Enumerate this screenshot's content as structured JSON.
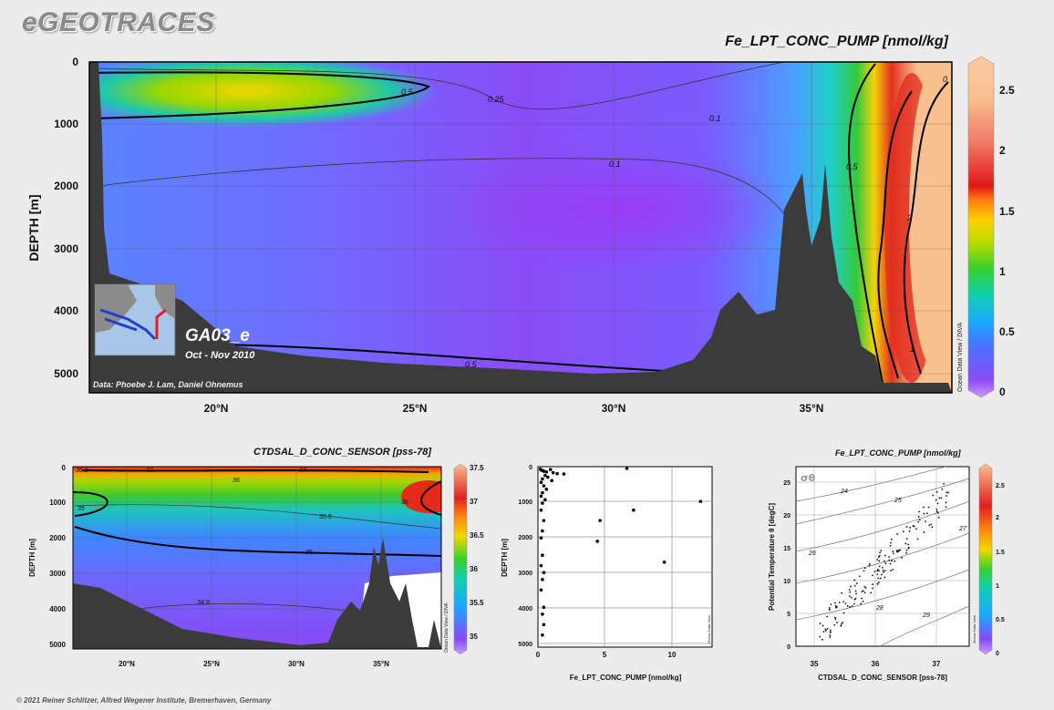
{
  "header": {
    "logo": "eGEOTRACES",
    "copyright": "© 2021 Reiner Schlitzer, Alfred Wegener Institute, Bremerhaven, Germany"
  },
  "colors": {
    "background": "#ececec",
    "topography": "#3b3b3b",
    "low": "#8b3cf5",
    "high": "#f9c08f"
  },
  "chart_data": [
    {
      "type": "heatmap",
      "title": "Fe_LPT_CONC_PUMP [nmol/kg]",
      "ylabel": "DEPTH [m]",
      "x_ticks": [
        "20°N",
        "25°N",
        "30°N",
        "35°N"
      ],
      "y_ticks": [
        "0",
        "1000",
        "2000",
        "3000",
        "4000",
        "5000"
      ],
      "colorbar_ticks": [
        "2.5",
        "2",
        "1.5",
        "1",
        "0.5",
        "0"
      ],
      "colorbar_side_label": "Ocean Data View / DIVA",
      "contour_labels": [
        "0.5",
        "0.25",
        "0.1",
        "0.1",
        "0.5",
        "2",
        "1",
        "0.5",
        "0"
      ],
      "section_name": "GA03_e",
      "section_dates": "Oct - Nov 2010",
      "credit": "Data: Phoebe J. Lam, Daniel Ohnemus"
    },
    {
      "type": "heatmap",
      "title": "CTDSAL_D_CONC_SENSOR [pss-78]",
      "ylabel": "DEPTH [m]",
      "x_ticks": [
        "20°N",
        "25°N",
        "30°N",
        "35°N"
      ],
      "y_ticks": [
        "0",
        "1000",
        "2000",
        "3000",
        "4000",
        "5000"
      ],
      "colorbar_ticks": [
        "37.5",
        "37",
        "36.5",
        "36",
        "35.5",
        "35"
      ],
      "colorbar_side_label": "Ocean Data View / DIVA",
      "contour_labels": [
        "36.5",
        "37",
        "37",
        "36",
        "35",
        "35.5",
        "36",
        "35",
        "34.9"
      ]
    },
    {
      "type": "scatter",
      "xlabel": "Fe_LPT_CONC_PUMP [nmol/kg]",
      "ylabel": "DEPTH [m]",
      "x_ticks": [
        "0",
        "5",
        "10"
      ],
      "y_ticks": [
        "0",
        "1000",
        "2000",
        "3000",
        "4000",
        "5000"
      ],
      "xlim": [
        0,
        13
      ],
      "ylim": [
        5200,
        0
      ],
      "side_label": "Ocean Data View",
      "points": [
        [
          0.05,
          20
        ],
        [
          0.1,
          40
        ],
        [
          0.2,
          60
        ],
        [
          0.3,
          80
        ],
        [
          0.5,
          100
        ],
        [
          0.8,
          30
        ],
        [
          1.0,
          120
        ],
        [
          1.3,
          150
        ],
        [
          1.8,
          160
        ],
        [
          0.4,
          200
        ],
        [
          0.6,
          250
        ],
        [
          0.2,
          300
        ],
        [
          0.9,
          350
        ],
        [
          0.1,
          400
        ],
        [
          0.3,
          500
        ],
        [
          0.5,
          600
        ],
        [
          0.2,
          700
        ],
        [
          0.1,
          800
        ],
        [
          0.4,
          900
        ],
        [
          0.2,
          1000
        ],
        [
          0.1,
          1200
        ],
        [
          0.3,
          1500
        ],
        [
          0.2,
          1800
        ],
        [
          0.1,
          2000
        ],
        [
          0.2,
          2500
        ],
        [
          0.1,
          2800
        ],
        [
          0.3,
          3000
        ],
        [
          0.2,
          3200
        ],
        [
          0.1,
          3500
        ],
        [
          0.3,
          4000
        ],
        [
          0.2,
          4200
        ],
        [
          0.3,
          4500
        ],
        [
          0.2,
          4800
        ],
        [
          6.5,
          0
        ],
        [
          12.0,
          950
        ],
        [
          7.0,
          1200
        ],
        [
          4.5,
          1500
        ],
        [
          4.3,
          2100
        ],
        [
          9.3,
          2700
        ]
      ]
    },
    {
      "type": "scatter",
      "title": "Fe_LPT_CONC_PUMP [nmol/kg]",
      "xlabel": "CTDSAL_D_CONC_SENSOR [pss-78]",
      "ylabel": "Potential Temperature θ [degC]",
      "x_ticks": [
        "35",
        "36",
        "37"
      ],
      "y_ticks": [
        "0",
        "5",
        "10",
        "15",
        "20",
        "25"
      ],
      "xlim": [
        34.5,
        37.5
      ],
      "ylim": [
        0,
        27.5
      ],
      "isopycnal_labels": [
        "24",
        "25",
        "26",
        "27",
        "28",
        "29"
      ],
      "sigma_label": "σθ",
      "colorbar_ticks": [
        "2.5",
        "2",
        "1.5",
        "1",
        "0.5",
        "0"
      ],
      "colorbar_side_label": "Ocean Data View"
    }
  ]
}
